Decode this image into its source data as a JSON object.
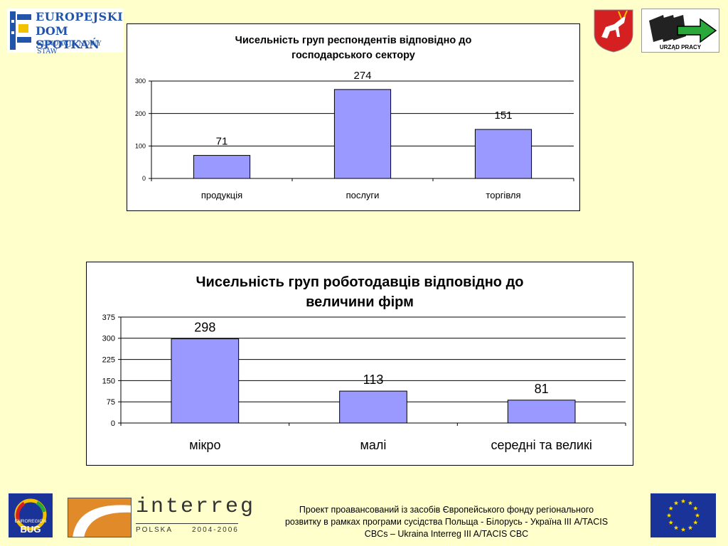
{
  "logos": {
    "eds_line1": "EUROPEJSKI",
    "eds_line2": "DOM SPOTKAŃ",
    "eds_line3": "FUNDACJA NOWY STAW",
    "urzad_text": "URZĄD PRACY",
    "euroregion_line1": "EUROREGION",
    "euroregion_line2": "BUG",
    "interreg_name": "interreg",
    "interreg_country": "POLSKA",
    "interreg_years": "2004-2006"
  },
  "footer": {
    "text": "Проект проавансований із засобів Європейського фонду регіонального\nрозвитку в рамках програми сусідства Польща - Білорусь - Україна ІІІ A/TACIS\nCBCs – Ukraina Interreg III A/TACIS CBC"
  },
  "colors": {
    "background": "#ffffcc",
    "bar": "#9999ff",
    "eu_blue": "#1a3399",
    "eu_star": "#ffdd00"
  },
  "chart_data": [
    {
      "type": "bar",
      "title": "Чисельність груп респондентів відповідно до\nгосподарського сектору",
      "categories": [
        "продукція",
        "послуги",
        "торгівля"
      ],
      "values": [
        71,
        274,
        151
      ],
      "yticks": [
        0,
        100,
        200,
        300
      ],
      "ylim": [
        0,
        300
      ],
      "grid": true,
      "legend": "none"
    },
    {
      "type": "bar",
      "title": "Чисельність груп роботодавців відповідно до\nвеличини  фірм",
      "categories": [
        "мікро",
        "малі",
        "середні та великі"
      ],
      "values": [
        298,
        113,
        81
      ],
      "yticks": [
        0,
        75,
        150,
        225,
        300,
        375
      ],
      "ylim": [
        0,
        375
      ],
      "grid": true,
      "legend": "none"
    }
  ]
}
